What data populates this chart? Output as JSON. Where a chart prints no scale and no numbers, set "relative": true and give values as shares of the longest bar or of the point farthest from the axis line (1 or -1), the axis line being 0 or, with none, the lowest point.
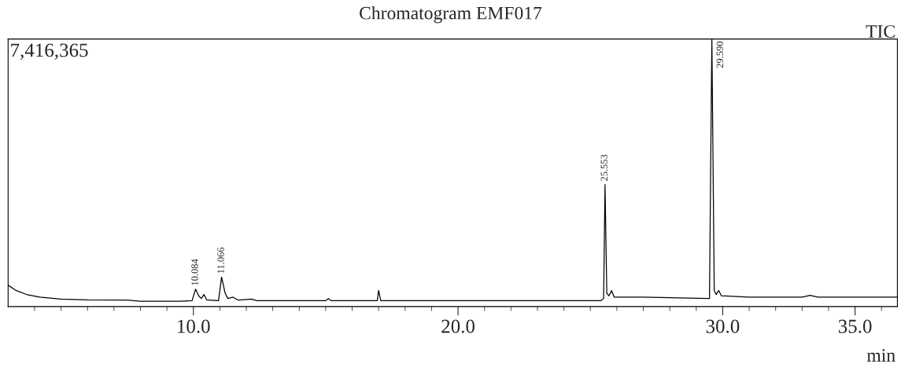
{
  "chart_data": {
    "type": "line",
    "title": "Chromatogram EMF017",
    "xlabel": "min",
    "relative": true,
    "annotations": [
      "7,416,365",
      "TIC",
      {
        "text": "10.084",
        "x": 10.084,
        "y": 0.065
      },
      {
        "text": "11.066",
        "x": 11.066,
        "y": 0.11
      },
      {
        "text": "25.553",
        "x": 25.553,
        "y": 0.456
      },
      {
        "text": "29.590",
        "x": 29.59,
        "y": 1.0
      }
    ],
    "xlim": [
      3.0,
      36.6
    ],
    "xticks": [
      {
        "value": 4,
        "label": null
      },
      {
        "value": 5,
        "label": null
      },
      {
        "value": 6,
        "label": null
      },
      {
        "value": 7,
        "label": null
      },
      {
        "value": 8,
        "label": null
      },
      {
        "value": 9,
        "label": null
      },
      {
        "value": 10,
        "label": "10.0"
      },
      {
        "value": 11,
        "label": null
      },
      {
        "value": 12,
        "label": null
      },
      {
        "value": 13,
        "label": null
      },
      {
        "value": 14,
        "label": null
      },
      {
        "value": 15,
        "label": null
      },
      {
        "value": 16,
        "label": null
      },
      {
        "value": 17,
        "label": null
      },
      {
        "value": 18,
        "label": null
      },
      {
        "value": 19,
        "label": null
      },
      {
        "value": 20,
        "label": "20.0"
      },
      {
        "value": 21,
        "label": null
      },
      {
        "value": 22,
        "label": null
      },
      {
        "value": 23,
        "label": null
      },
      {
        "value": 24,
        "label": null
      },
      {
        "value": 25,
        "label": null
      },
      {
        "value": 26,
        "label": null
      },
      {
        "value": 27,
        "label": null
      },
      {
        "value": 28,
        "label": null
      },
      {
        "value": 29,
        "label": null
      },
      {
        "value": 30,
        "label": "30.0"
      },
      {
        "value": 31,
        "label": null
      },
      {
        "value": 32,
        "label": null
      },
      {
        "value": 33,
        "label": null
      },
      {
        "value": 34,
        "label": null
      },
      {
        "value": 35,
        "label": "35.0"
      },
      {
        "value": 36,
        "label": null
      }
    ],
    "grid": false,
    "legend": false,
    "series": [
      {
        "color": "#000000",
        "x": [
          3.0,
          3.3,
          3.7,
          4.2,
          5.0,
          6.0,
          7.5,
          8.0,
          9.5,
          9.95,
          10.084,
          10.2,
          10.3,
          10.4,
          10.5,
          10.95,
          11.066,
          11.2,
          11.3,
          11.5,
          11.7,
          12.2,
          12.4,
          15.0,
          15.1,
          15.2,
          16.95,
          17.0,
          17.08,
          20.0,
          25.4,
          25.5,
          25.553,
          25.62,
          25.7,
          25.8,
          25.9,
          27.0,
          29.5,
          29.59,
          29.68,
          29.75,
          29.85,
          29.95,
          31.0,
          33.0,
          33.3,
          33.6,
          36.6
        ],
        "values": [
          0.08,
          0.06,
          0.045,
          0.035,
          0.028,
          0.025,
          0.024,
          0.02,
          0.02,
          0.022,
          0.065,
          0.04,
          0.03,
          0.045,
          0.025,
          0.022,
          0.11,
          0.05,
          0.03,
          0.035,
          0.024,
          0.028,
          0.022,
          0.022,
          0.03,
          0.022,
          0.022,
          0.06,
          0.022,
          0.022,
          0.022,
          0.03,
          0.456,
          0.05,
          0.04,
          0.06,
          0.035,
          0.035,
          0.03,
          1.0,
          0.06,
          0.045,
          0.06,
          0.04,
          0.035,
          0.035,
          0.042,
          0.035,
          0.035
        ]
      }
    ]
  }
}
